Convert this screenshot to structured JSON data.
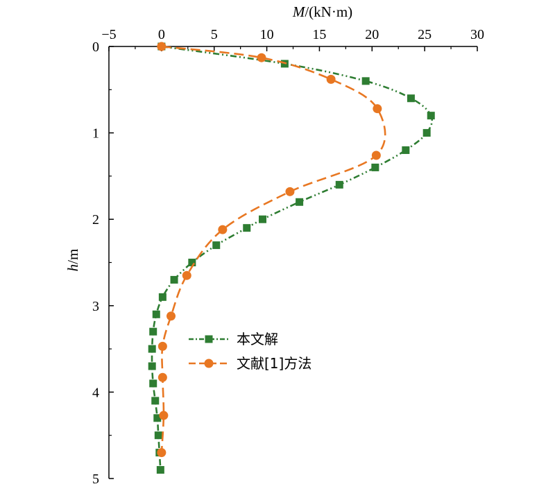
{
  "chart_data": {
    "type": "line",
    "x_axis_label": {
      "symbol": "M",
      "unit": "/(kN·m)"
    },
    "y_axis_label": {
      "symbol": "h",
      "unit": "/m"
    },
    "xlim": [
      -5,
      30
    ],
    "ylim": [
      0,
      5
    ],
    "y_inverted": true,
    "x_axis_position": "top",
    "x_ticks": [
      "−5",
      "0",
      "5",
      "10",
      "15",
      "20",
      "25",
      "30"
    ],
    "y_ticks": [
      "0",
      "1",
      "2",
      "3",
      "4",
      "5"
    ],
    "grid": false,
    "legend_position": "center",
    "series": [
      {
        "name": "本文解",
        "color": "#2e7d32",
        "marker": "square",
        "line_style": "dash-dot-dot",
        "points": [
          {
            "x": 0,
            "y": 0.0
          },
          {
            "x": 11.7,
            "y": 0.2
          },
          {
            "x": 19.4,
            "y": 0.4
          },
          {
            "x": 23.7,
            "y": 0.6
          },
          {
            "x": 25.6,
            "y": 0.8
          },
          {
            "x": 25.2,
            "y": 1.0
          },
          {
            "x": 23.2,
            "y": 1.2
          },
          {
            "x": 20.3,
            "y": 1.4
          },
          {
            "x": 16.9,
            "y": 1.6
          },
          {
            "x": 13.1,
            "y": 1.8
          },
          {
            "x": 9.6,
            "y": 2.0
          },
          {
            "x": 8.1,
            "y": 2.1
          },
          {
            "x": 5.2,
            "y": 2.3
          },
          {
            "x": 2.9,
            "y": 2.5
          },
          {
            "x": 1.2,
            "y": 2.7
          },
          {
            "x": 0.1,
            "y": 2.9
          },
          {
            "x": -0.5,
            "y": 3.1
          },
          {
            "x": -0.8,
            "y": 3.3
          },
          {
            "x": -0.9,
            "y": 3.5
          },
          {
            "x": -0.9,
            "y": 3.7
          },
          {
            "x": -0.8,
            "y": 3.9
          },
          {
            "x": -0.6,
            "y": 4.1
          },
          {
            "x": -0.4,
            "y": 4.3
          },
          {
            "x": -0.3,
            "y": 4.5
          },
          {
            "x": -0.2,
            "y": 4.7
          },
          {
            "x": -0.1,
            "y": 4.9
          }
        ]
      },
      {
        "name": "文献[1]方法",
        "color": "#e87722",
        "marker": "circle",
        "line_style": "dashed",
        "points": [
          {
            "x": 0,
            "y": 0.0
          },
          {
            "x": 9.5,
            "y": 0.13
          },
          {
            "x": 16.1,
            "y": 0.38
          },
          {
            "x": 20.5,
            "y": 0.72
          },
          {
            "x": 20.4,
            "y": 1.26
          },
          {
            "x": 12.2,
            "y": 1.68
          },
          {
            "x": 5.8,
            "y": 2.12
          },
          {
            "x": 2.4,
            "y": 2.65
          },
          {
            "x": 0.9,
            "y": 3.12
          },
          {
            "x": 0.1,
            "y": 3.47
          },
          {
            "x": 0.1,
            "y": 3.83
          },
          {
            "x": 0.2,
            "y": 4.27
          },
          {
            "x": 0.0,
            "y": 4.7
          }
        ]
      }
    ]
  }
}
